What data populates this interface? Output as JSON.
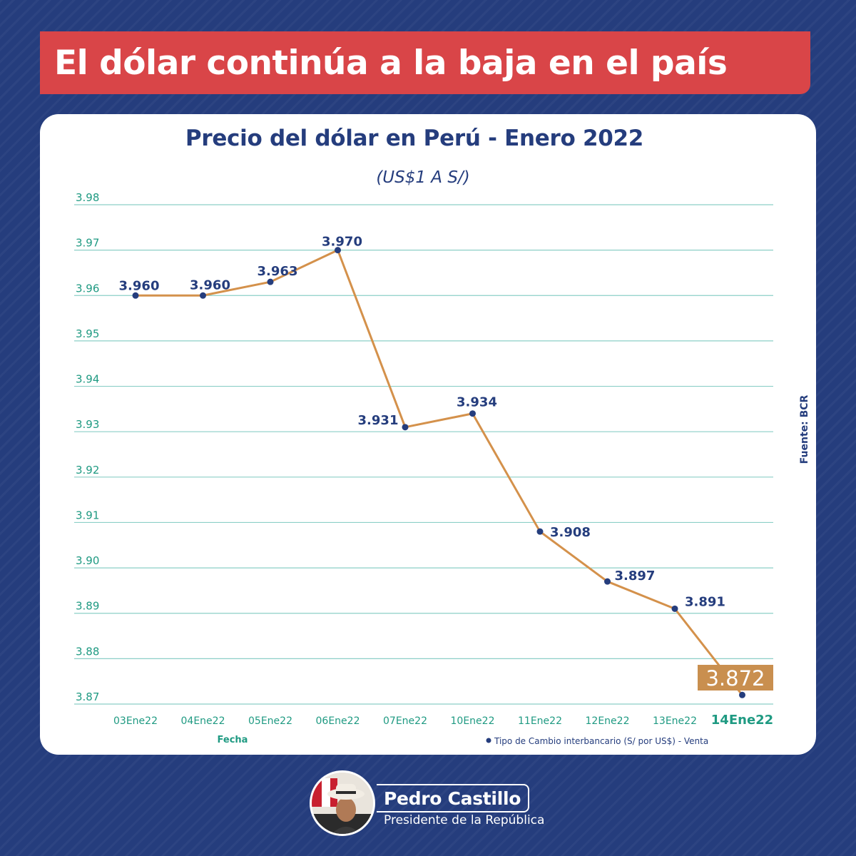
{
  "header": {
    "headline": "El dólar continúa a la baja en el país"
  },
  "chart_data": {
    "type": "line",
    "title": "Precio del dólar en Perú - Enero 2022",
    "subtitle": "(US$1 A S/)",
    "xlabel": "Fecha",
    "ylabel": "",
    "source": "Fuente: BCR",
    "categories": [
      "03Ene22",
      "04Ene22",
      "05Ene22",
      "06Ene22",
      "07Ene22",
      "10Ene22",
      "11Ene22",
      "12Ene22",
      "13Ene22",
      "14Ene22"
    ],
    "series": [
      {
        "name": "Tipo de Cambio interbancario (S/ por US$) - Venta",
        "values": [
          3.96,
          3.96,
          3.963,
          3.97,
          3.931,
          3.934,
          3.908,
          3.897,
          3.891,
          3.872
        ],
        "labels": [
          "3.960",
          "3.960",
          "3.963",
          "3.970",
          "3.931",
          "3.934",
          "3.908",
          "3.897",
          "3.891",
          "3.872"
        ]
      }
    ],
    "yticks": [
      "3.98",
      "3.97",
      "3.96",
      "3.95",
      "3.94",
      "3.93",
      "3.92",
      "3.91",
      "3.90",
      "3.89",
      "3.88",
      "3.87"
    ],
    "ylim": [
      3.87,
      3.98
    ],
    "grid": true,
    "legend_position": "bottom-right",
    "highlight_index": 9,
    "colors": {
      "line": "#d4914b",
      "marker": "#253d7d",
      "grid": "#8ccfc7",
      "tick_text": "#1f9a82",
      "highlight_bg": "#c98f4f",
      "label_text": "#253d7d"
    }
  },
  "footer": {
    "name": "Pedro Castillo",
    "role": "Presidente de la República"
  }
}
